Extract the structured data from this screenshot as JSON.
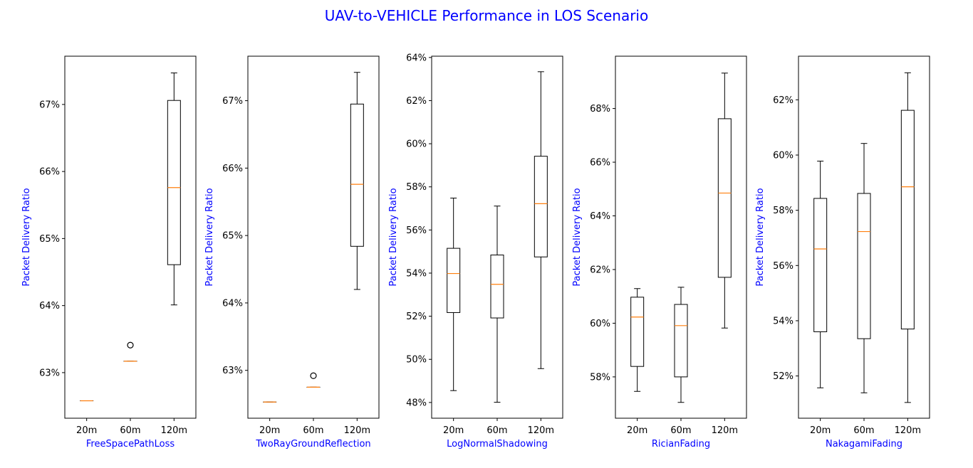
{
  "title": "UAV-to-VEHICLE Performance in LOS Scenario",
  "colors": {
    "title": "#0000ff",
    "axis_label": "#0000ff",
    "median": "#ff7f0e",
    "box": "#000000"
  },
  "chart_data": [
    {
      "type": "box",
      "xlabel": "FreeSpacePathLoss",
      "ylabel": "Packet Delivery Ratio",
      "categories": [
        "20m",
        "60m",
        "120m"
      ],
      "ylim": [
        0.6232,
        0.6772
      ],
      "yticks": [
        0.63,
        0.64,
        0.65,
        0.66,
        0.67
      ],
      "ytick_labels": [
        "63%",
        "64%",
        "65%",
        "66%",
        "67%"
      ],
      "boxes": [
        {
          "whislo": 0.6258,
          "q1": 0.6258,
          "med": 0.6258,
          "q3": 0.6258,
          "whishi": 0.6258,
          "fliers": []
        },
        {
          "whislo": 0.6317,
          "q1": 0.6317,
          "med": 0.6317,
          "q3": 0.6317,
          "whishi": 0.6317,
          "fliers": [
            0.6341
          ]
        },
        {
          "whislo": 0.6401,
          "q1": 0.6461,
          "med": 0.6576,
          "q3": 0.6706,
          "whishi": 0.6747,
          "fliers": []
        }
      ]
    },
    {
      "type": "box",
      "xlabel": "TwoRayGroundReflection",
      "ylabel": "Packet Delivery Ratio",
      "categories": [
        "20m",
        "60m",
        "120m"
      ],
      "ylim": [
        0.6229,
        0.6766
      ],
      "yticks": [
        0.63,
        0.64,
        0.65,
        0.66,
        0.67
      ],
      "ytick_labels": [
        "63%",
        "64%",
        "65%",
        "66%",
        "67%"
      ],
      "boxes": [
        {
          "whislo": 0.6253,
          "q1": 0.6253,
          "med": 0.6253,
          "q3": 0.6253,
          "whishi": 0.6253,
          "fliers": []
        },
        {
          "whislo": 0.6275,
          "q1": 0.6275,
          "med": 0.6275,
          "q3": 0.6275,
          "whishi": 0.6275,
          "fliers": [
            0.6292
          ]
        },
        {
          "whislo": 0.642,
          "q1": 0.6484,
          "med": 0.6576,
          "q3": 0.6695,
          "whishi": 0.6742,
          "fliers": []
        }
      ]
    },
    {
      "type": "box",
      "xlabel": "LogNormalShadowing",
      "ylabel": "Packet Delivery Ratio",
      "categories": [
        "20m",
        "60m",
        "120m"
      ],
      "ylim": [
        0.4727,
        0.6406
      ],
      "yticks": [
        0.48,
        0.5,
        0.52,
        0.54,
        0.56,
        0.58,
        0.6,
        0.62,
        0.64
      ],
      "ytick_labels": [
        "48%",
        "50%",
        "52%",
        "54%",
        "56%",
        "58%",
        "60%",
        "62%",
        "64%"
      ],
      "boxes": [
        {
          "whislo": 0.4855,
          "q1": 0.5217,
          "med": 0.5398,
          "q3": 0.5515,
          "whishi": 0.5748,
          "fliers": []
        },
        {
          "whislo": 0.4801,
          "q1": 0.5192,
          "med": 0.5348,
          "q3": 0.5484,
          "whishi": 0.5711,
          "fliers": []
        },
        {
          "whislo": 0.4957,
          "q1": 0.5475,
          "med": 0.5722,
          "q3": 0.5942,
          "whishi": 0.6334,
          "fliers": []
        }
      ]
    },
    {
      "type": "box",
      "xlabel": "RicianFading",
      "ylabel": "Packet Delivery Ratio",
      "categories": [
        "20m",
        "60m",
        "120m"
      ],
      "ylim": [
        0.5646,
        0.6995
      ],
      "yticks": [
        0.58,
        0.6,
        0.62,
        0.64,
        0.66,
        0.68
      ],
      "ytick_labels": [
        "58%",
        "60%",
        "62%",
        "64%",
        "66%",
        "68%"
      ],
      "boxes": [
        {
          "whislo": 0.5746,
          "q1": 0.5839,
          "med": 0.6023,
          "q3": 0.6097,
          "whishi": 0.6129,
          "fliers": []
        },
        {
          "whislo": 0.5705,
          "q1": 0.58,
          "med": 0.5991,
          "q3": 0.607,
          "whishi": 0.6134,
          "fliers": []
        },
        {
          "whislo": 0.5982,
          "q1": 0.6171,
          "med": 0.6485,
          "q3": 0.6762,
          "whishi": 0.6932,
          "fliers": []
        }
      ]
    },
    {
      "type": "box",
      "xlabel": "NakagamiFading",
      "ylabel": "Packet Delivery Ratio",
      "categories": [
        "20m",
        "60m",
        "120m"
      ],
      "ylim": [
        0.5047,
        0.6358
      ],
      "yticks": [
        0.52,
        0.54,
        0.56,
        0.58,
        0.6,
        0.62
      ],
      "ytick_labels": [
        "52%",
        "54%",
        "56%",
        "58%",
        "60%",
        "62%"
      ],
      "boxes": [
        {
          "whislo": 0.5157,
          "q1": 0.536,
          "med": 0.566,
          "q3": 0.5843,
          "whishi": 0.5978,
          "fliers": []
        },
        {
          "whislo": 0.5139,
          "q1": 0.5335,
          "med": 0.5723,
          "q3": 0.5861,
          "whishi": 0.6042,
          "fliers": []
        },
        {
          "whislo": 0.5104,
          "q1": 0.537,
          "med": 0.5885,
          "q3": 0.6162,
          "whishi": 0.6298,
          "fliers": []
        }
      ]
    }
  ]
}
